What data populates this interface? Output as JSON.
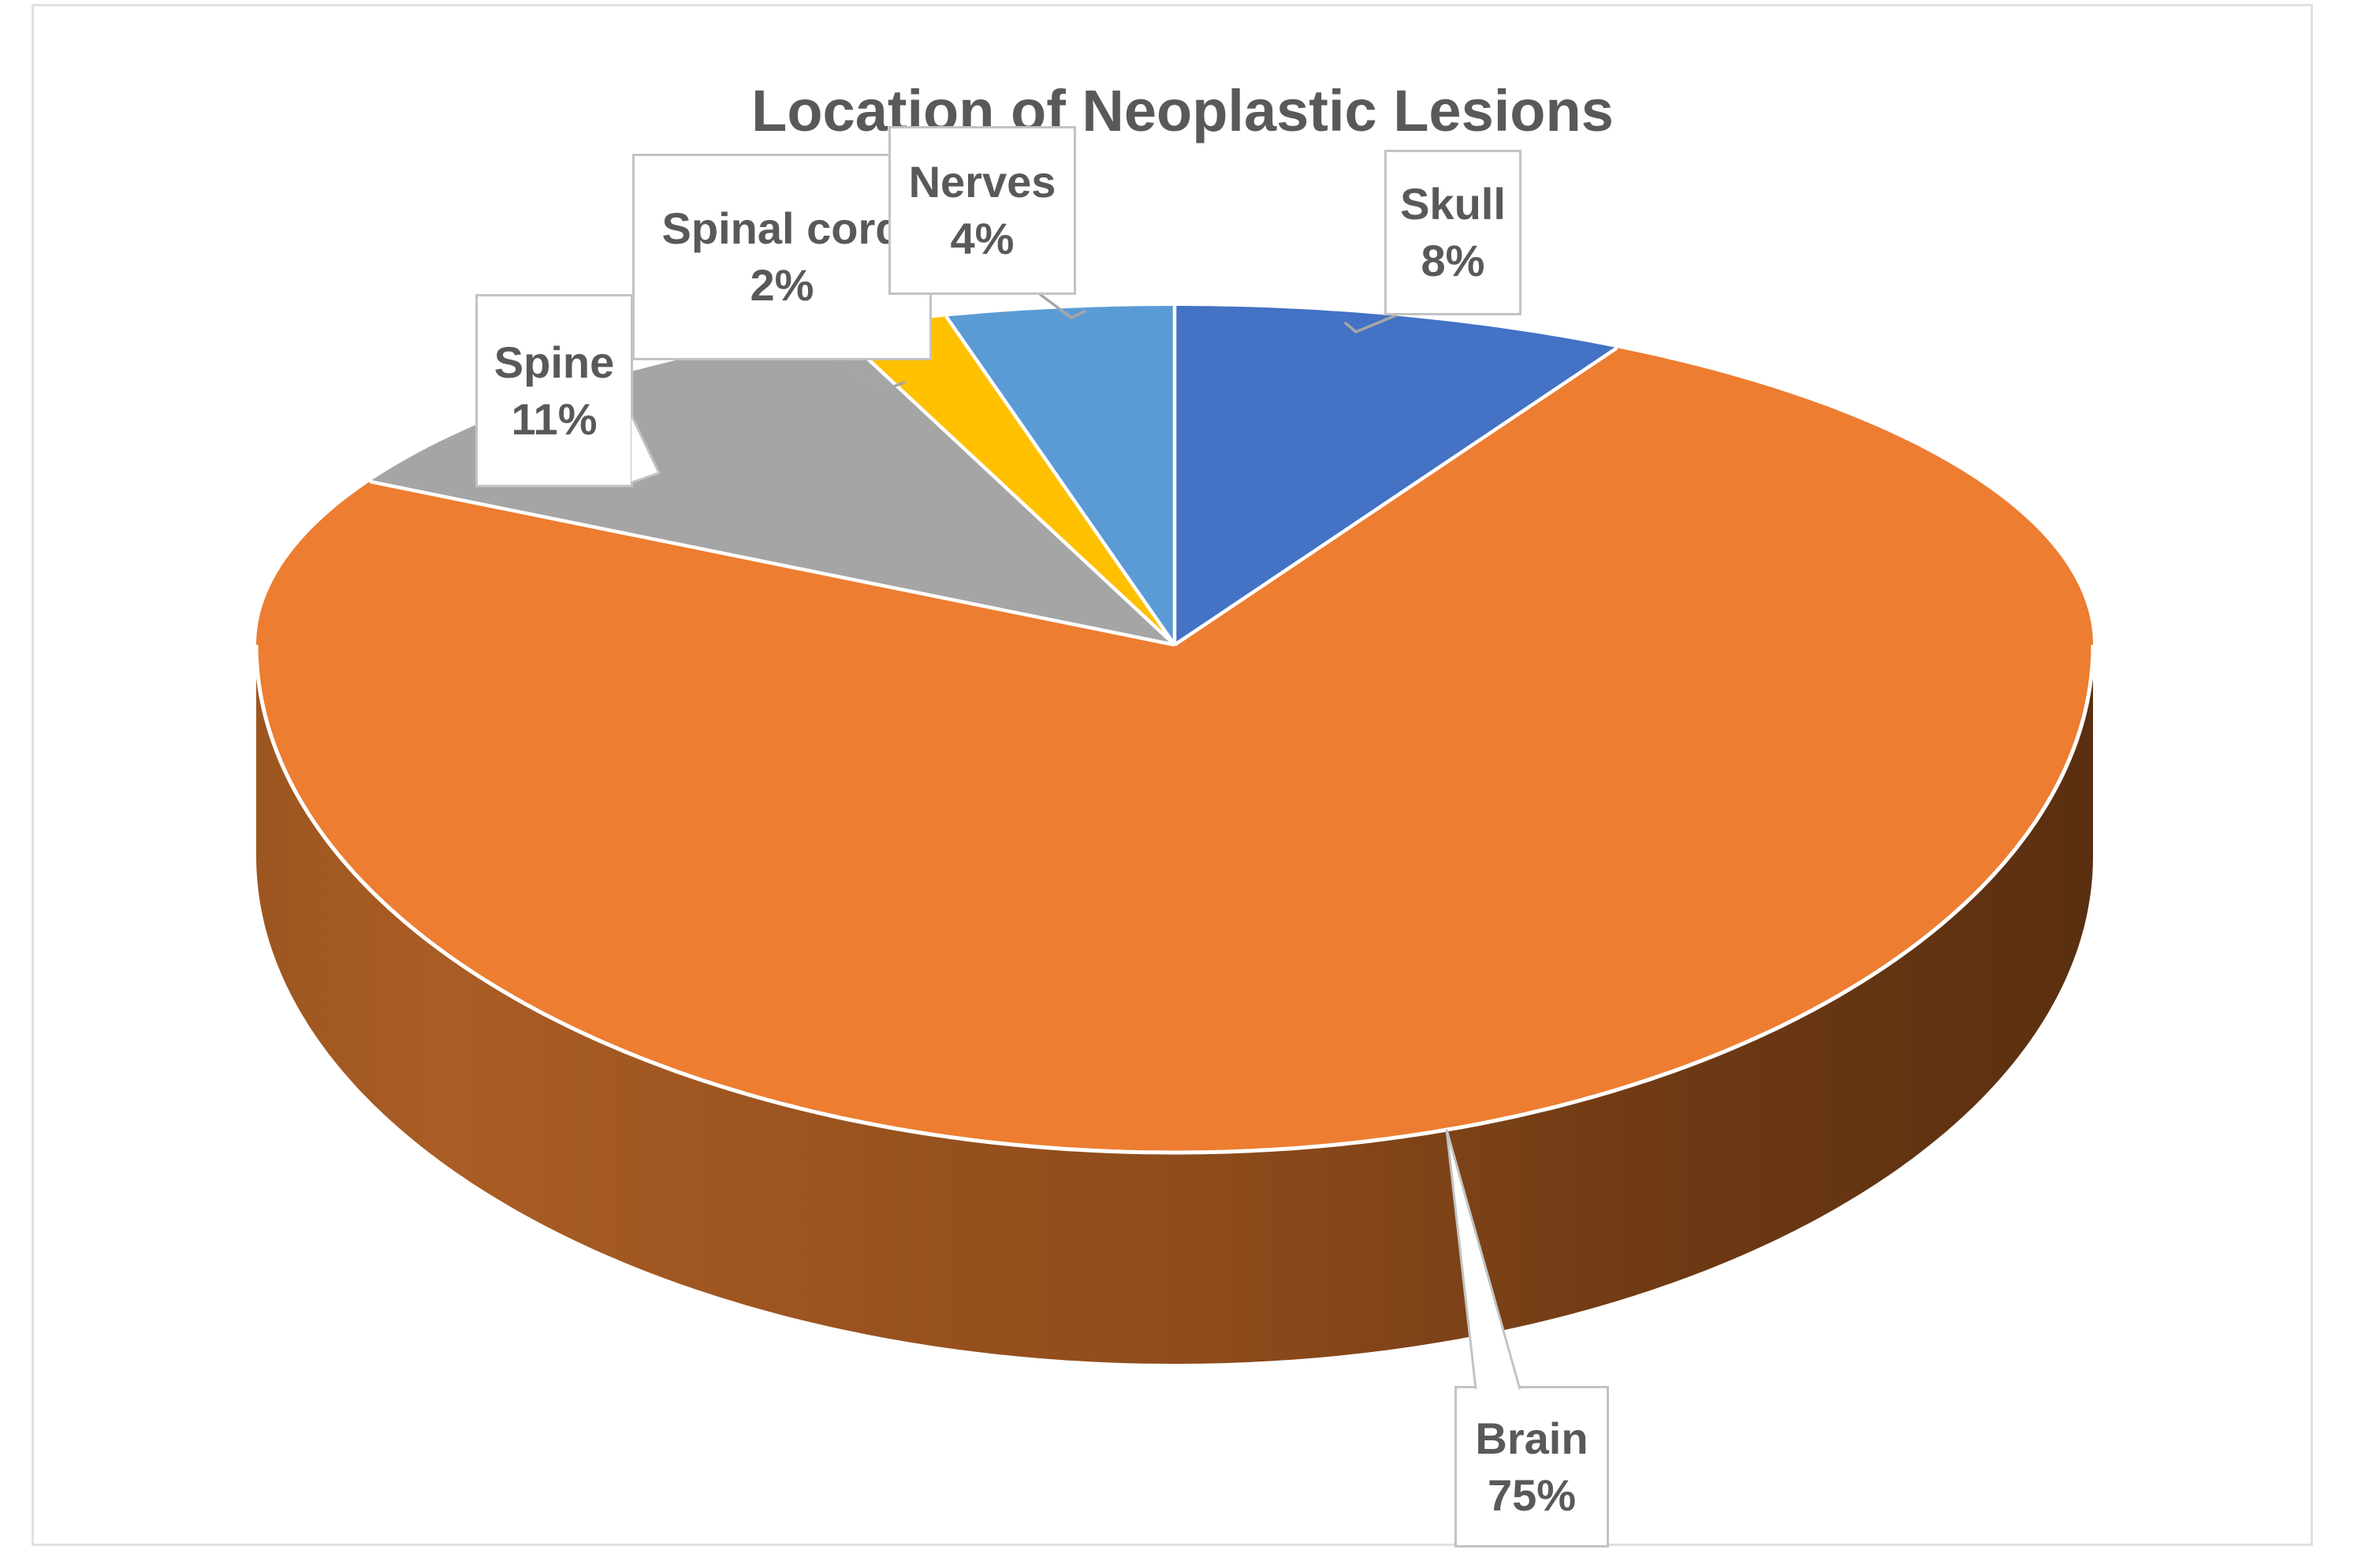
{
  "chart": {
    "title": "Location of Neoplastic Lesions",
    "title_color": "#595959",
    "background": "#FFFFFF",
    "frame_border_color": "#E0E0E0",
    "label_text_color": "#595959",
    "callout_fill": "#FFFFFF",
    "callout_border_color": "#C3C3C3",
    "leader_color": "#A6A6A6",
    "separator_color": "#FFFFFF"
  },
  "chart_data": {
    "type": "pie",
    "style": "3d-pie",
    "title": "Location of Neoplastic Lesions",
    "direction": "clockwise",
    "start_angle_deg": 0,
    "categories": [
      "Skull",
      "Brain",
      "Spine",
      "Spinal cord",
      "Nerves"
    ],
    "values": [
      8,
      75,
      11,
      2,
      4
    ],
    "display_values": [
      "8%",
      "75%",
      "11%",
      "2%",
      "4%"
    ],
    "colors": [
      "#4472C4",
      "#ED7D31",
      "#A5A5A5",
      "#FFC000",
      "#5B9BD5"
    ],
    "side_shading": [
      "#AA5D25",
      "#8E4B1B",
      "#5A2F10"
    ],
    "legend": "none",
    "data_labels": "category name and percentage shown in white callout boxes with gray leader lines"
  }
}
